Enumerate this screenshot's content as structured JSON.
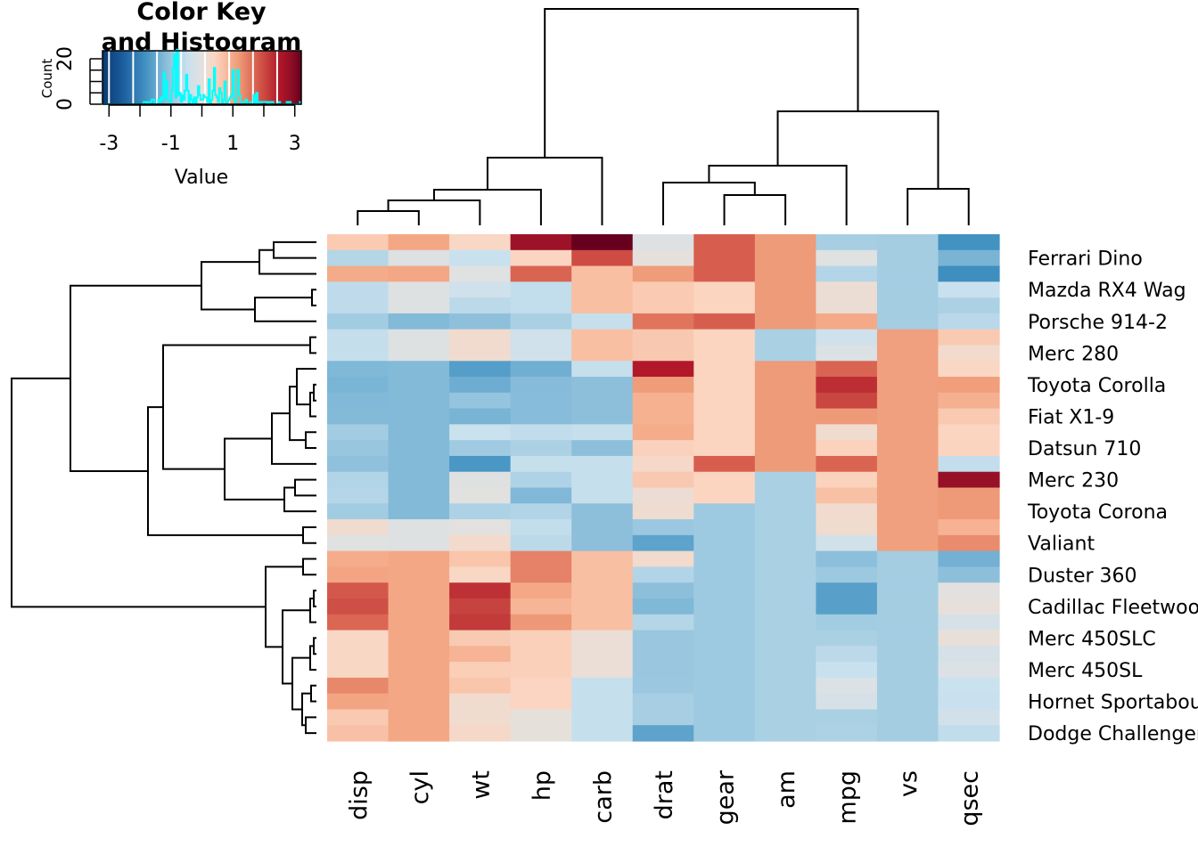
{
  "chart_data": {
    "type": "heatmap",
    "columns": [
      "disp",
      "cyl",
      "wt",
      "hp",
      "carb",
      "drat",
      "gear",
      "am",
      "mpg",
      "vs",
      "qsec"
    ],
    "rows": [
      {
        "label": "",
        "values": [
          0.57,
          1.01,
          0.36,
          2.75,
          3.21,
          -0.11,
          1.78,
          1.19,
          -0.84,
          -0.87,
          -1.82
        ]
      },
      {
        "label": "Ferrari Dino",
        "values": [
          -0.69,
          -0.1,
          -0.46,
          0.41,
          1.97,
          0.04,
          1.78,
          1.19,
          -0.06,
          -0.87,
          -1.31
        ]
      },
      {
        "label": "",
        "values": [
          0.97,
          1.01,
          -0.05,
          1.71,
          0.74,
          1.17,
          1.78,
          1.19,
          -0.71,
          -0.87,
          -1.87
        ]
      },
      {
        "label": "Mazda RX4 Wag",
        "values": [
          -0.57,
          -0.1,
          -0.35,
          -0.54,
          0.74,
          0.57,
          0.42,
          1.19,
          0.15,
          -0.87,
          -0.46
        ]
      },
      {
        "label": "",
        "values": [
          -0.57,
          -0.1,
          -0.61,
          -0.54,
          0.74,
          0.57,
          0.42,
          1.19,
          0.15,
          -0.87,
          -0.78
        ]
      },
      {
        "label": "Porsche 914-2",
        "values": [
          -0.89,
          -1.22,
          -1.1,
          -0.81,
          -0.5,
          1.56,
          1.78,
          1.19,
          0.98,
          -0.87,
          -0.64
        ]
      },
      {
        "label": "",
        "values": [
          -0.51,
          -0.1,
          0.23,
          -0.35,
          0.74,
          0.6,
          0.42,
          -0.81,
          -0.38,
          1.12,
          0.59
        ]
      },
      {
        "label": "Merc 280",
        "values": [
          -0.51,
          -0.1,
          0.23,
          -0.35,
          0.74,
          0.6,
          0.42,
          -0.81,
          -0.15,
          1.12,
          0.25
        ]
      },
      {
        "label": "",
        "values": [
          -1.25,
          -1.22,
          -1.64,
          -1.38,
          -0.5,
          2.49,
          0.42,
          1.19,
          1.71,
          1.12,
          0.38
        ]
      },
      {
        "label": "Toyota Corolla",
        "values": [
          -1.29,
          -1.22,
          -1.41,
          -1.19,
          -1.12,
          1.17,
          0.42,
          1.19,
          2.29,
          1.12,
          1.15
        ]
      },
      {
        "label": "",
        "values": [
          -1.23,
          -1.22,
          -1.04,
          -1.18,
          -1.12,
          0.9,
          0.42,
          1.19,
          2.04,
          1.12,
          0.91
        ]
      },
      {
        "label": "Fiat X1-9",
        "values": [
          -1.22,
          -1.22,
          -1.31,
          -1.18,
          -1.12,
          0.9,
          0.42,
          1.19,
          1.2,
          1.12,
          0.59
        ]
      },
      {
        "label": "",
        "values": [
          -0.89,
          -1.22,
          -0.45,
          -0.55,
          -0.5,
          0.96,
          0.42,
          1.19,
          0.22,
          1.12,
          0.42
        ]
      },
      {
        "label": "Datsun 710",
        "values": [
          -0.99,
          -1.22,
          -0.92,
          -0.78,
          -1.12,
          0.47,
          0.42,
          1.19,
          0.45,
          1.12,
          0.43
        ]
      },
      {
        "label": "",
        "values": [
          -1.09,
          -1.22,
          -1.74,
          -0.49,
          -0.5,
          0.32,
          1.78,
          1.19,
          1.71,
          1.12,
          -0.53
        ]
      },
      {
        "label": "Merc 230",
        "values": [
          -0.73,
          -1.22,
          -0.07,
          -0.75,
          -0.5,
          0.6,
          0.42,
          -0.81,
          0.45,
          1.12,
          2.83
        ]
      },
      {
        "label": "",
        "values": [
          -0.68,
          -1.22,
          -0.03,
          -1.24,
          -0.5,
          0.17,
          0.42,
          -0.81,
          0.72,
          1.12,
          1.2
        ]
      },
      {
        "label": "Toyota Corona",
        "values": [
          -0.89,
          -1.22,
          -0.77,
          -0.72,
          -1.12,
          0.19,
          -0.93,
          -0.81,
          0.23,
          1.12,
          1.21
        ]
      },
      {
        "label": "",
        "values": [
          0.22,
          -0.1,
          0.0,
          -0.54,
          -1.12,
          -0.97,
          -0.93,
          -0.81,
          0.22,
          1.12,
          0.89
        ]
      },
      {
        "label": "Valiant",
        "values": [
          -0.05,
          -0.1,
          0.25,
          -0.61,
          -1.12,
          -1.56,
          -0.93,
          -0.81,
          -0.33,
          1.12,
          1.33
        ]
      },
      {
        "label": "",
        "values": [
          0.96,
          1.01,
          0.64,
          1.43,
          0.74,
          0.25,
          -0.93,
          -0.81,
          -1.13,
          -0.87,
          -1.36
        ]
      },
      {
        "label": "Duster 360",
        "values": [
          1.04,
          1.01,
          0.36,
          1.43,
          0.74,
          -0.72,
          -0.93,
          -0.81,
          -0.96,
          -0.87,
          -1.12
        ]
      },
      {
        "label": "",
        "values": [
          1.85,
          1.01,
          2.26,
          1.0,
          0.74,
          -1.12,
          -0.93,
          -0.81,
          -1.61,
          -0.87,
          -0.02
        ]
      },
      {
        "label": "Cadillac Fleetwood",
        "values": [
          1.95,
          1.01,
          2.08,
          0.85,
          0.74,
          -1.25,
          -0.93,
          -0.81,
          -1.61,
          -0.87,
          0.07
        ]
      },
      {
        "label": "",
        "values": [
          1.69,
          1.01,
          2.17,
          1.22,
          0.74,
          -0.69,
          -0.93,
          -0.81,
          -0.89,
          -0.87,
          -0.24
        ]
      },
      {
        "label": "Merc 450SLC",
        "values": [
          0.36,
          1.01,
          0.58,
          0.49,
          0.12,
          -0.98,
          -0.93,
          -0.81,
          -0.81,
          -0.87,
          0.08
        ]
      },
      {
        "label": "",
        "values": [
          0.36,
          1.01,
          0.87,
          0.49,
          0.12,
          -0.98,
          -0.93,
          -0.81,
          -0.61,
          -0.87,
          -0.25
        ]
      },
      {
        "label": "Merc 450SL",
        "values": [
          0.36,
          1.01,
          0.52,
          0.49,
          0.12,
          -0.98,
          -0.93,
          -0.81,
          -0.46,
          -0.87,
          -0.14
        ]
      },
      {
        "label": "",
        "values": [
          1.37,
          1.01,
          0.64,
          0.41,
          -0.5,
          -0.97,
          -0.93,
          -0.81,
          -0.15,
          -0.87,
          -0.45
        ]
      },
      {
        "label": "Hornet Sportabout",
        "values": [
          1.04,
          1.01,
          0.23,
          0.41,
          -0.5,
          -0.84,
          -0.93,
          -0.81,
          -0.23,
          -0.87,
          -0.46
        ]
      },
      {
        "label": "",
        "values": [
          0.59,
          1.01,
          0.22,
          0.05,
          -0.5,
          -0.84,
          -0.93,
          -0.81,
          -0.81,
          -0.87,
          -0.31
        ]
      },
      {
        "label": "Dodge Challenger",
        "values": [
          0.7,
          1.01,
          0.31,
          0.05,
          -0.5,
          -1.56,
          -0.93,
          -0.81,
          -0.76,
          -0.87,
          -0.55
        ]
      }
    ],
    "color_scale": {
      "low": "#053061",
      "mid": "#e3e1df",
      "high": "#67001f",
      "range": [
        -3.21,
        3.21
      ]
    },
    "row_dendrogram": true,
    "column_dendrogram": true,
    "color_key": {
      "title_line1": "Color Key",
      "title_line2": "and Histogram",
      "xlabel": "Value",
      "ylabel": "Count",
      "xticks": [
        "-3",
        "-1",
        "1",
        "3"
      ],
      "yticks": [
        "0",
        "20"
      ],
      "histogram_color": "#00ffff"
    }
  }
}
